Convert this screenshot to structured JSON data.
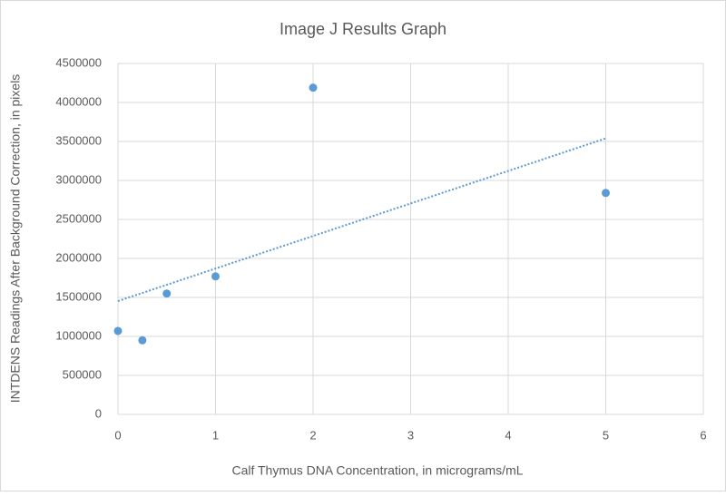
{
  "chart_data": {
    "type": "scatter",
    "title": "Image J Results Graph",
    "x_label": "Calf Thymus DNA Concentration, in micrograms/mL",
    "y_label": "INTDENS Readings After Background Correction, in pixels",
    "series": [
      {
        "color": "#5b9bd5",
        "x": [
          0,
          0.25,
          0.5,
          1,
          2,
          5
        ],
        "values": [
          1070000,
          950000,
          1550000,
          1770000,
          4190000,
          2840000
        ]
      }
    ],
    "trendline": {
      "type": "linear",
      "style": "dotted",
      "color": "#5b9bd5"
    },
    "xlim": [
      0,
      6
    ],
    "xticks": [
      0,
      1,
      2,
      3,
      4,
      5,
      6
    ],
    "ylim": [
      0,
      4500000
    ],
    "yticks": [
      0,
      500000,
      1000000,
      1500000,
      2000000,
      2500000,
      3000000,
      3500000,
      4000000,
      4500000
    ],
    "grid": true
  }
}
